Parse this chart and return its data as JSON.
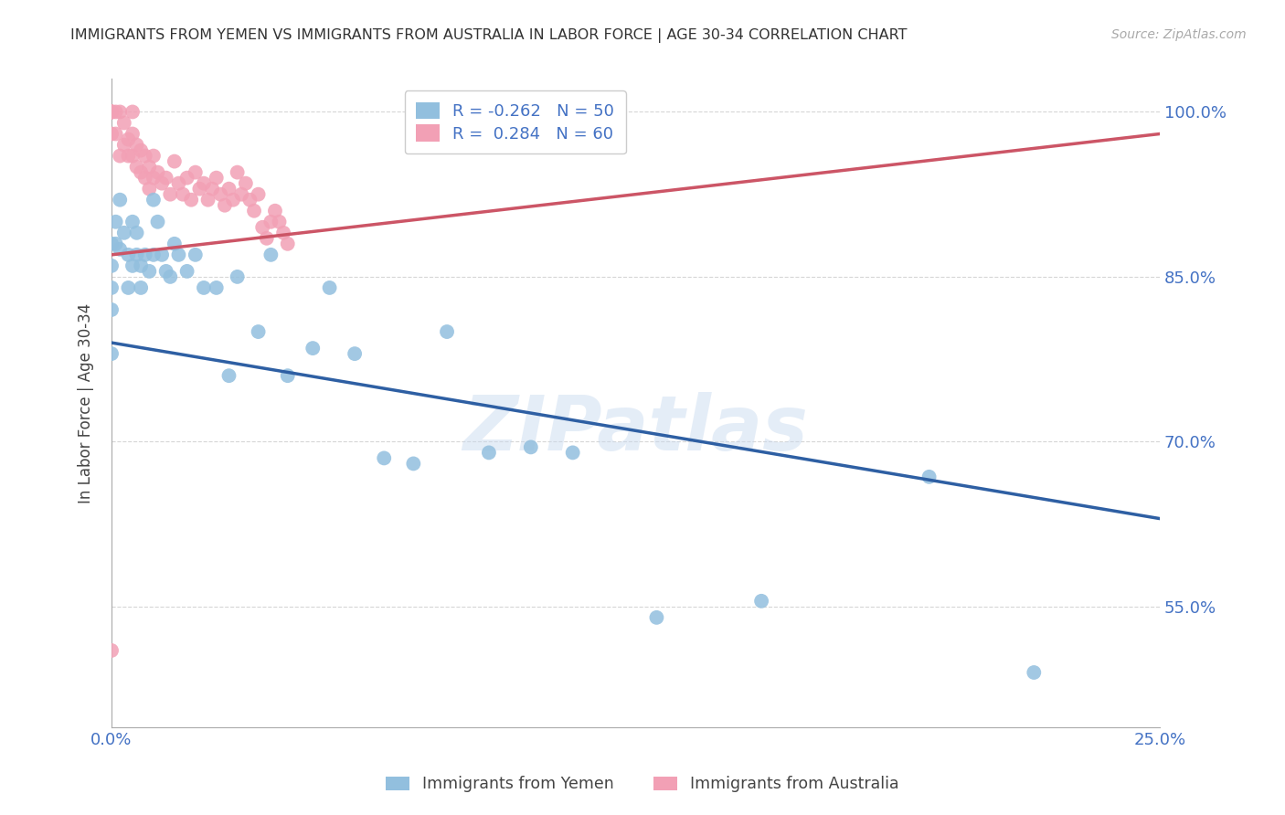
{
  "title": "IMMIGRANTS FROM YEMEN VS IMMIGRANTS FROM AUSTRALIA IN LABOR FORCE | AGE 30-34 CORRELATION CHART",
  "source": "Source: ZipAtlas.com",
  "ylabel": "In Labor Force | Age 30-34",
  "xlim": [
    0.0,
    0.25
  ],
  "ylim": [
    0.44,
    1.03
  ],
  "yticks": [
    0.55,
    0.7,
    0.85,
    1.0
  ],
  "ytick_labels": [
    "55.0%",
    "70.0%",
    "85.0%",
    "100.0%"
  ],
  "r_yemen": -0.262,
  "n_yemen": 50,
  "r_australia": 0.284,
  "n_australia": 60,
  "yemen_color": "#92bfde",
  "australia_color": "#f2a0b5",
  "yemen_line_color": "#2e5fa3",
  "australia_line_color": "#cc5566",
  "background_color": "#ffffff",
  "yemen_line_x0": 0.0,
  "yemen_line_y0": 0.79,
  "yemen_line_x1": 0.25,
  "yemen_line_y1": 0.63,
  "aus_line_x0": 0.0,
  "aus_line_y0": 0.87,
  "aus_line_x1": 0.25,
  "aus_line_y1": 0.98,
  "yemen_x": [
    0.0,
    0.0,
    0.0,
    0.0,
    0.0,
    0.001,
    0.001,
    0.002,
    0.002,
    0.003,
    0.004,
    0.004,
    0.005,
    0.005,
    0.006,
    0.006,
    0.007,
    0.007,
    0.008,
    0.009,
    0.01,
    0.01,
    0.011,
    0.012,
    0.013,
    0.014,
    0.015,
    0.016,
    0.018,
    0.02,
    0.022,
    0.025,
    0.028,
    0.03,
    0.035,
    0.038,
    0.042,
    0.048,
    0.052,
    0.058,
    0.065,
    0.072,
    0.08,
    0.09,
    0.1,
    0.11,
    0.13,
    0.155,
    0.195,
    0.22
  ],
  "yemen_y": [
    0.88,
    0.86,
    0.84,
    0.82,
    0.78,
    0.9,
    0.88,
    0.92,
    0.875,
    0.89,
    0.87,
    0.84,
    0.9,
    0.86,
    0.89,
    0.87,
    0.86,
    0.84,
    0.87,
    0.855,
    0.92,
    0.87,
    0.9,
    0.87,
    0.855,
    0.85,
    0.88,
    0.87,
    0.855,
    0.87,
    0.84,
    0.84,
    0.76,
    0.85,
    0.8,
    0.87,
    0.76,
    0.785,
    0.84,
    0.78,
    0.685,
    0.68,
    0.8,
    0.69,
    0.695,
    0.69,
    0.54,
    0.555,
    0.668,
    0.49
  ],
  "australia_x": [
    0.0,
    0.0,
    0.0,
    0.0,
    0.0,
    0.0,
    0.0,
    0.001,
    0.001,
    0.002,
    0.002,
    0.003,
    0.003,
    0.004,
    0.004,
    0.005,
    0.005,
    0.005,
    0.006,
    0.006,
    0.007,
    0.007,
    0.008,
    0.008,
    0.009,
    0.009,
    0.01,
    0.01,
    0.011,
    0.012,
    0.013,
    0.014,
    0.015,
    0.016,
    0.017,
    0.018,
    0.019,
    0.02,
    0.021,
    0.022,
    0.023,
    0.024,
    0.025,
    0.026,
    0.027,
    0.028,
    0.029,
    0.03,
    0.031,
    0.032,
    0.033,
    0.034,
    0.035,
    0.036,
    0.037,
    0.038,
    0.039,
    0.04,
    0.041,
    0.042
  ],
  "australia_y": [
    1.0,
    1.0,
    1.0,
    1.0,
    1.0,
    0.98,
    0.51,
    1.0,
    0.98,
    1.0,
    0.96,
    0.99,
    0.97,
    0.975,
    0.96,
    1.0,
    0.98,
    0.96,
    0.97,
    0.95,
    0.965,
    0.945,
    0.96,
    0.94,
    0.95,
    0.93,
    0.96,
    0.94,
    0.945,
    0.935,
    0.94,
    0.925,
    0.955,
    0.935,
    0.925,
    0.94,
    0.92,
    0.945,
    0.93,
    0.935,
    0.92,
    0.93,
    0.94,
    0.925,
    0.915,
    0.93,
    0.92,
    0.945,
    0.925,
    0.935,
    0.92,
    0.91,
    0.925,
    0.895,
    0.885,
    0.9,
    0.91,
    0.9,
    0.89,
    0.88
  ]
}
